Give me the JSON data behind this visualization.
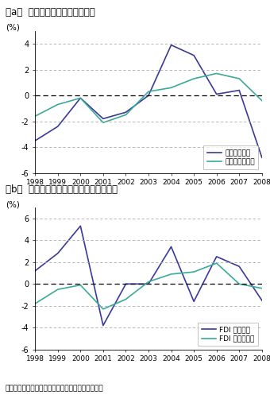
{
  "years": [
    1998,
    1999,
    2000,
    2001,
    2002,
    2003,
    2004,
    2005,
    2006,
    2007,
    2008
  ],
  "panel_a": {
    "title": "（a）  輸出開始企業と非開始企業",
    "ylabel": "(%)",
    "line1_label": "輸出開始企業",
    "line2_label": "輸出非開始企業",
    "line1_color": "#3a3a9a",
    "line2_color": "#3aaa99",
    "line1_values": [
      -3.5,
      -2.4,
      -0.2,
      -1.8,
      -1.3,
      0.0,
      3.9,
      3.1,
      0.1,
      0.4,
      -4.8
    ],
    "line2_values": [
      -1.6,
      -0.7,
      -0.2,
      -2.1,
      -1.5,
      0.3,
      0.6,
      1.3,
      1.7,
      1.3,
      -0.4
    ],
    "ylim": [
      -6,
      5
    ],
    "yticks": [
      -6,
      -4,
      -2,
      0,
      2,
      4
    ]
  },
  "panel_b": {
    "title": "（b）  対外直接投資開始企業と非開始企業",
    "ylabel": "(%)",
    "line1_label": "FDI 開始企業",
    "line2_label": "FDI 非開始企業",
    "line1_color": "#3a3a9a",
    "line2_color": "#3aaa99",
    "line1_values": [
      1.2,
      2.8,
      5.3,
      -3.8,
      0.0,
      0.0,
      3.4,
      -1.6,
      2.5,
      1.6,
      -1.5
    ],
    "line2_values": [
      -1.8,
      -0.5,
      -0.1,
      -2.3,
      -1.4,
      0.2,
      0.9,
      1.1,
      1.9,
      0.0,
      -0.4
    ],
    "ylim": [
      -6,
      7
    ],
    "yticks": [
      -6,
      -4,
      -2,
      0,
      2,
      4,
      6
    ]
  },
  "footnote": "資料：経済産業省「企業活動基本調査」から作成。",
  "bg_color": "#ffffff",
  "grid_color": "#aaaaaa",
  "zero_line_color": "#000000"
}
